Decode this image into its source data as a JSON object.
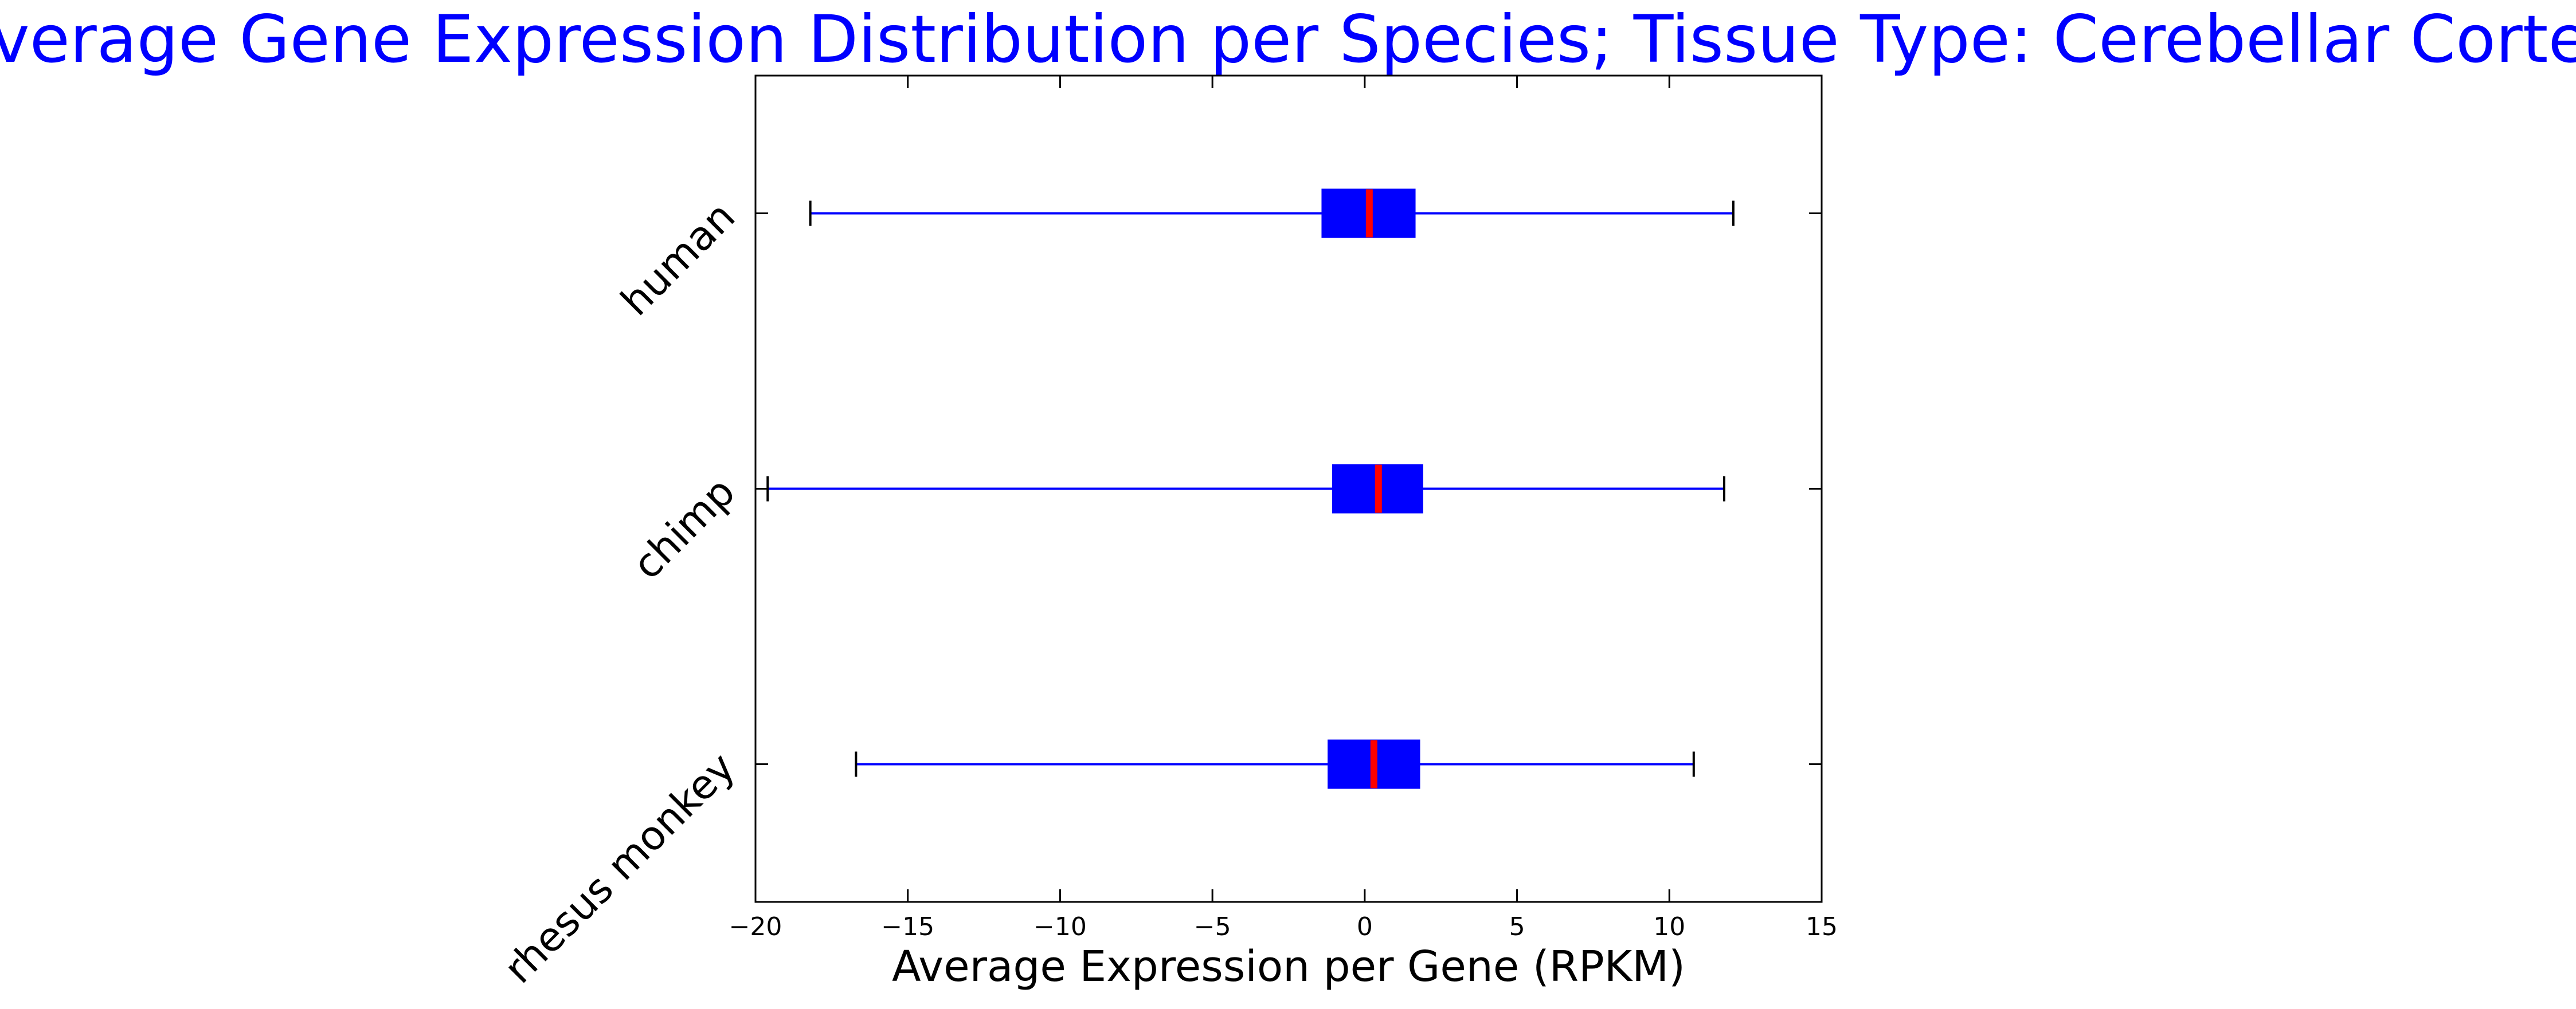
{
  "chart_data": {
    "type": "boxplot",
    "orientation": "horizontal",
    "title": "Average Gene Expression Distribution per Species; Tissue Type: Cerebellar Cortex",
    "xlabel": "Average Expression per Gene (RPKM)",
    "ylabel": "",
    "xlim": [
      -20,
      15
    ],
    "x_ticks": [
      -20,
      -15,
      -10,
      -5,
      0,
      5,
      10,
      15
    ],
    "x_tick_labels": [
      "−20",
      "−15",
      "−10",
      "−5",
      "0",
      "5",
      "10",
      "15"
    ],
    "grid": false,
    "colors": {
      "box": "#0000ff",
      "whisker": "#0000ff",
      "median": "#ff0000",
      "title": "#0000ff",
      "axis": "#000000"
    },
    "categories": [
      "human",
      "chimp",
      "rhesus monkey"
    ],
    "boxes": [
      {
        "label": "human",
        "whisker_low": -18.2,
        "q1": -1.4,
        "median": 0.15,
        "q3": 1.65,
        "whisker_high": 12.1
      },
      {
        "label": "chimp",
        "whisker_low": -19.6,
        "q1": -1.05,
        "median": 0.45,
        "q3": 1.9,
        "whisker_high": 11.8
      },
      {
        "label": "rhesus monkey",
        "whisker_low": -16.7,
        "q1": -1.2,
        "median": 0.3,
        "q3": 1.8,
        "whisker_high": 10.8
      }
    ]
  }
}
